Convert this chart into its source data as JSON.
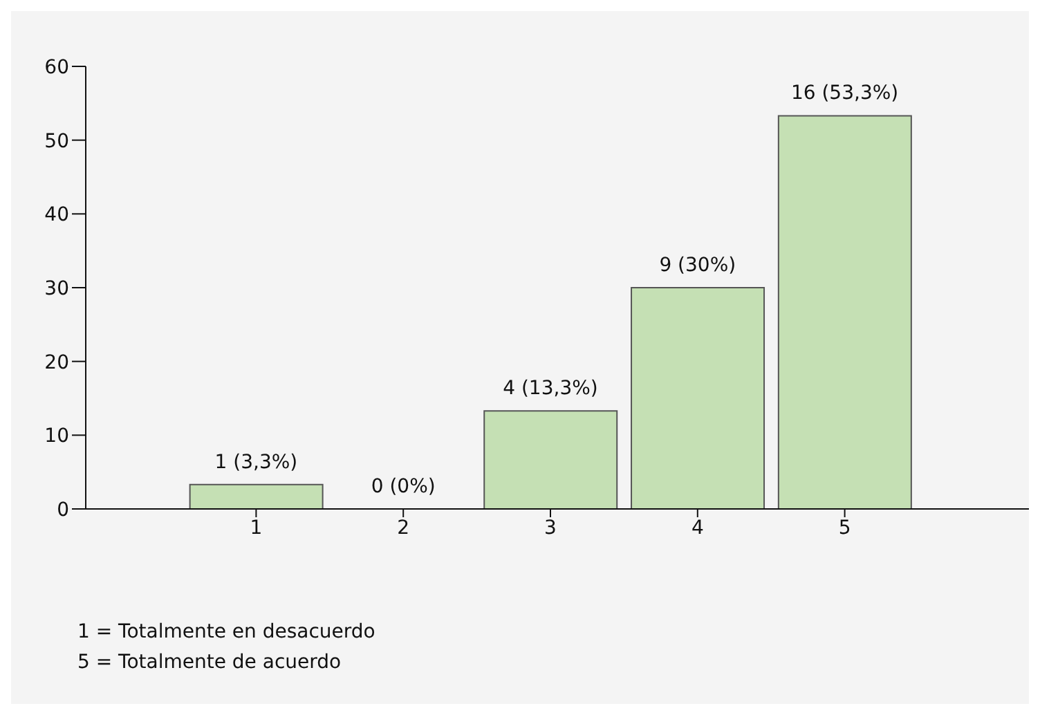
{
  "chart_data": {
    "type": "bar",
    "categories": [
      "1",
      "2",
      "3",
      "4",
      "5"
    ],
    "values": [
      3.3,
      0,
      13.3,
      30,
      53.3
    ],
    "color": "#c5e0b4",
    "value_labels": [
      "1 (3,3%)",
      "0 (0%)",
      "4 (13,3%)",
      "9 (30%)",
      "16 (53,3%)"
    ],
    "ylim": [
      0,
      60
    ],
    "yticks": [
      0,
      10,
      20,
      30,
      40,
      50,
      60
    ],
    "annotations": [
      "1 = Totalmente en desacuerdo",
      "5 = Totalmente de acuerdo"
    ]
  }
}
